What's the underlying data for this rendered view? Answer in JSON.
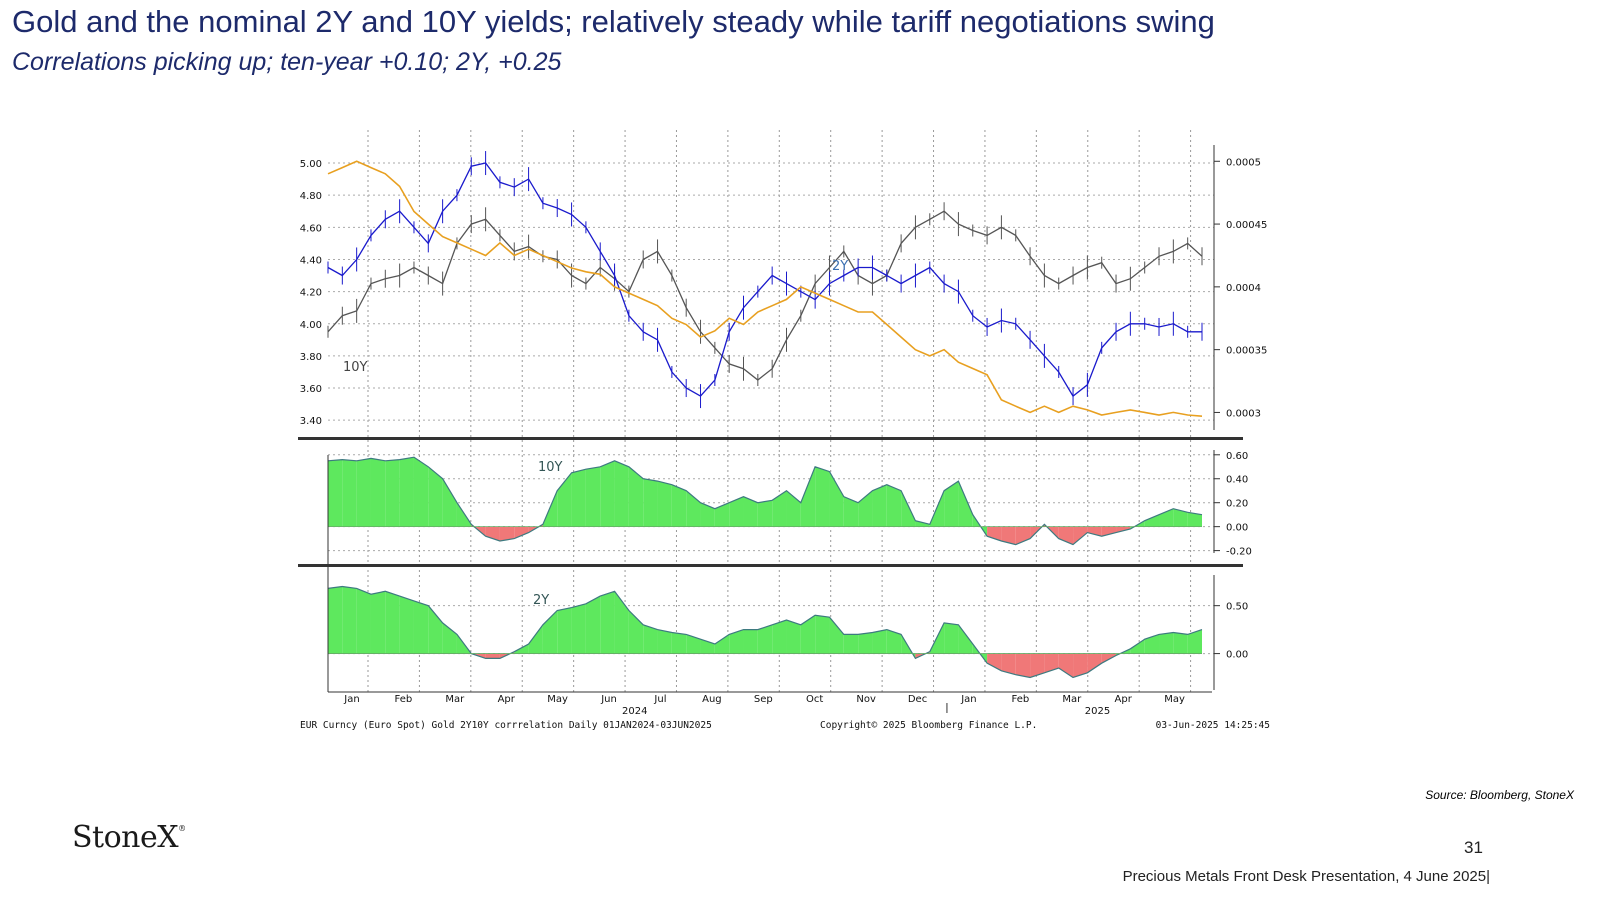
{
  "header": {
    "title": "Gold and the nominal 2Y and 10Y yields; relatively steady while tariff negotiations swing",
    "subtitle": "Correlations picking up; ten-year +0.10;  2Y, +0.25"
  },
  "footer": {
    "source": "Source: Bloomberg, StoneX",
    "logo": "StoneX",
    "page_number": "31",
    "presentation": "Precious Metals Front Desk Presentation, 4 June 2025|"
  },
  "colors": {
    "gold_line": "#e8a020",
    "ten_year": "#555555",
    "two_year": "#1a1acc",
    "positive_fill": "#5ee85e",
    "negative_fill": "#f07878",
    "title": "#1d2a6b"
  },
  "chart_data": {
    "type": "line",
    "months": [
      "Jan",
      "Feb",
      "Mar",
      "Apr",
      "May",
      "Jun",
      "Jul",
      "Aug",
      "Sep",
      "Oct",
      "Nov",
      "Dec",
      "Jan",
      "Feb",
      "Mar",
      "Apr",
      "May"
    ],
    "year_labels": [
      "2024",
      "2025"
    ],
    "footer_left": "EUR Curncy (Euro Spot) Gold 2Y10Y corrrelation  Daily 01JAN2024-03JUN2025",
    "footer_center": "Copyright© 2025 Bloomberg Finance L.P.",
    "footer_right": "03-Jun-2025 14:25:45",
    "top_panel": {
      "left_axis_ticks": [
        "5.00",
        "4.80",
        "4.60",
        "4.40",
        "4.20",
        "4.00",
        "3.80",
        "3.60",
        "3.40"
      ],
      "right_axis_ticks": [
        "0.0005",
        "0.00045",
        "0.0004",
        "0.00035",
        "0.0003"
      ],
      "ylim_left": [
        3.37,
        5.05
      ],
      "ylim_right": [
        0.00029,
        0.000505
      ],
      "labels": {
        "ten_year": "10Y",
        "two_year": "2Y"
      },
      "series": [
        {
          "name": "10Y",
          "axis": "left",
          "values": [
            3.95,
            4.05,
            4.08,
            4.25,
            4.28,
            4.3,
            4.35,
            4.3,
            4.25,
            4.5,
            4.62,
            4.65,
            4.55,
            4.45,
            4.48,
            4.42,
            4.4,
            4.3,
            4.25,
            4.35,
            4.28,
            4.2,
            4.4,
            4.45,
            4.3,
            4.1,
            3.95,
            3.85,
            3.75,
            3.72,
            3.65,
            3.72,
            3.9,
            4.05,
            4.25,
            4.35,
            4.45,
            4.3,
            4.25,
            4.3,
            4.5,
            4.6,
            4.65,
            4.7,
            4.62,
            4.58,
            4.55,
            4.6,
            4.55,
            4.42,
            4.3,
            4.25,
            4.3,
            4.35,
            4.38,
            4.25,
            4.28,
            4.35,
            4.42,
            4.45,
            4.5,
            4.42
          ]
        },
        {
          "name": "2Y",
          "axis": "left",
          "values": [
            4.35,
            4.3,
            4.4,
            4.55,
            4.65,
            4.7,
            4.6,
            4.5,
            4.7,
            4.8,
            4.98,
            5.0,
            4.88,
            4.85,
            4.9,
            4.75,
            4.72,
            4.68,
            4.6,
            4.45,
            4.3,
            4.05,
            3.95,
            3.9,
            3.7,
            3.6,
            3.55,
            3.65,
            3.95,
            4.1,
            4.2,
            4.3,
            4.25,
            4.2,
            4.15,
            4.25,
            4.3,
            4.35,
            4.35,
            4.3,
            4.25,
            4.3,
            4.35,
            4.25,
            4.2,
            4.05,
            3.98,
            4.02,
            4.0,
            3.9,
            3.8,
            3.7,
            3.55,
            3.62,
            3.85,
            3.95,
            4.0,
            4.0,
            3.98,
            4.0,
            3.95,
            3.95
          ]
        },
        {
          "name": "",
          "axis": "right",
          "values": [
            0.00049,
            0.000495,
            0.0005,
            0.000495,
            0.00049,
            0.00048,
            0.00046,
            0.00045,
            0.00044,
            0.000435,
            0.00043,
            0.000425,
            0.000435,
            0.000425,
            0.00043,
            0.000425,
            0.00042,
            0.000415,
            0.000412,
            0.00041,
            0.0004,
            0.000395,
            0.00039,
            0.000385,
            0.000375,
            0.00037,
            0.00036,
            0.000365,
            0.000375,
            0.00037,
            0.00038,
            0.000385,
            0.00039,
            0.0004,
            0.000395,
            0.00039,
            0.000385,
            0.00038,
            0.00038,
            0.00037,
            0.00036,
            0.00035,
            0.000345,
            0.00035,
            0.00034,
            0.000335,
            0.00033,
            0.00031,
            0.000305,
            0.0003,
            0.000305,
            0.0003,
            0.000305,
            0.000302,
            0.000298,
            0.0003,
            0.000302,
            0.0003,
            0.000298,
            0.0003,
            0.000298,
            0.000297
          ]
        }
      ]
    },
    "mid_panel": {
      "label": "10Y",
      "ticks": [
        "0.60",
        "0.40",
        "0.20",
        "0.00",
        "-0.20"
      ],
      "ylim": [
        -0.22,
        0.64
      ],
      "values": [
        0.55,
        0.56,
        0.55,
        0.57,
        0.55,
        0.56,
        0.58,
        0.5,
        0.4,
        0.2,
        0.02,
        -0.08,
        -0.12,
        -0.1,
        -0.05,
        0.02,
        0.3,
        0.45,
        0.48,
        0.5,
        0.55,
        0.5,
        0.4,
        0.38,
        0.35,
        0.3,
        0.2,
        0.15,
        0.2,
        0.25,
        0.2,
        0.22,
        0.3,
        0.2,
        0.5,
        0.46,
        0.25,
        0.2,
        0.3,
        0.35,
        0.3,
        0.05,
        0.02,
        0.3,
        0.38,
        0.1,
        -0.08,
        -0.12,
        -0.15,
        -0.1,
        0.02,
        -0.1,
        -0.15,
        -0.05,
        -0.08,
        -0.05,
        -0.02,
        0.05,
        0.1,
        0.15,
        0.12,
        0.1
      ]
    },
    "bottom_panel": {
      "label": "2Y",
      "ticks": [
        "0.50",
        "0.00"
      ],
      "ylim": [
        -0.38,
        0.82
      ],
      "values": [
        0.68,
        0.7,
        0.68,
        0.62,
        0.65,
        0.6,
        0.55,
        0.5,
        0.32,
        0.2,
        0.0,
        -0.05,
        -0.05,
        0.02,
        0.1,
        0.3,
        0.45,
        0.48,
        0.52,
        0.6,
        0.65,
        0.45,
        0.3,
        0.25,
        0.22,
        0.2,
        0.15,
        0.1,
        0.2,
        0.25,
        0.25,
        0.3,
        0.35,
        0.3,
        0.4,
        0.38,
        0.2,
        0.2,
        0.22,
        0.25,
        0.2,
        -0.05,
        0.02,
        0.32,
        0.3,
        0.1,
        -0.1,
        -0.18,
        -0.22,
        -0.25,
        -0.2,
        -0.15,
        -0.25,
        -0.2,
        -0.1,
        -0.02,
        0.05,
        0.15,
        0.2,
        0.22,
        0.2,
        0.25
      ]
    }
  }
}
